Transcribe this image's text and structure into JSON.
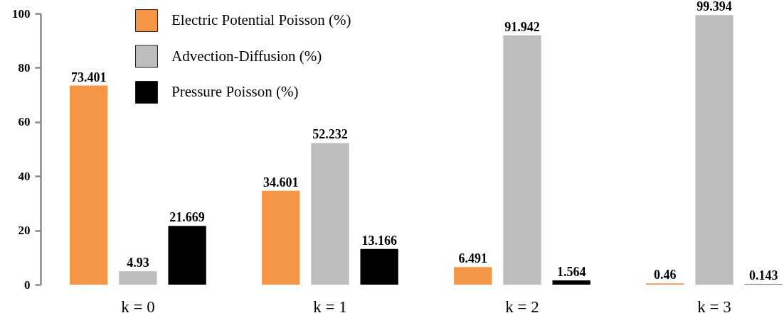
{
  "chart_data": {
    "type": "bar",
    "categories": [
      "k = 0",
      "k = 1",
      "k = 2",
      "k = 3"
    ],
    "series": [
      {
        "name": "Electric Potential Poisson (%)",
        "color": "#f59646",
        "values": [
          73.401,
          34.601,
          6.491,
          0.46
        ]
      },
      {
        "name": "Advection-Diffusion (%)",
        "color": "#bdbdbd",
        "values": [
          4.93,
          52.232,
          91.942,
          99.394
        ]
      },
      {
        "name": "Pressure Poisson (%)",
        "color": "#000000",
        "values": [
          21.669,
          13.166,
          1.564,
          0.143
        ]
      }
    ],
    "ylim": [
      0,
      100
    ],
    "yticks": [
      0,
      20,
      40,
      60,
      80,
      100
    ],
    "grid": false,
    "legend": "top left",
    "data_labels": true
  }
}
